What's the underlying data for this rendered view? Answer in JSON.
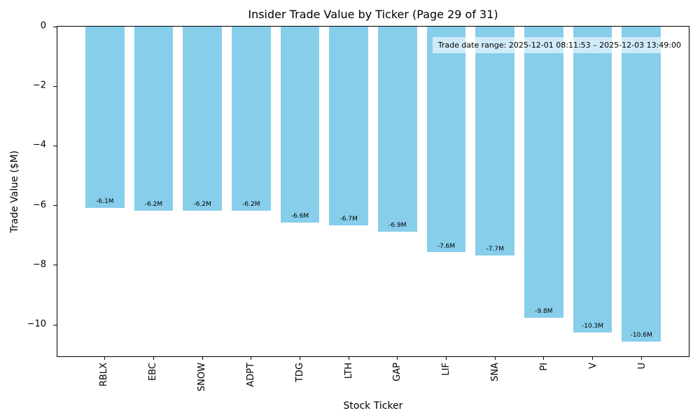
{
  "chart_data": {
    "type": "bar",
    "title": "Insider Trade Value by Ticker (Page 29 of 31)",
    "xlabel": "Stock Ticker",
    "ylabel": "Trade Value ($M)",
    "categories": [
      "RBLX",
      "EBC",
      "SNOW",
      "ADPT",
      "TDG",
      "LTH",
      "GAP",
      "LIF",
      "SNA",
      "PI",
      "V",
      "U"
    ],
    "values": [
      -6.1,
      -6.2,
      -6.2,
      -6.2,
      -6.6,
      -6.7,
      -6.9,
      -7.6,
      -7.7,
      -9.8,
      -10.3,
      -10.6
    ],
    "bar_labels": [
      "-6.1M",
      "-6.2M",
      "-6.2M",
      "-6.2M",
      "-6.6M",
      "-6.7M",
      "-6.9M",
      "-7.6M",
      "-7.7M",
      "-9.8M",
      "-10.3M",
      "-10.6M"
    ],
    "bar_color": "#87CEEB",
    "ylim": [
      -11.1,
      0
    ],
    "yticks": [
      0,
      -2,
      -4,
      -6,
      -8,
      -10
    ],
    "ytick_labels": [
      "0",
      "−2",
      "−4",
      "−6",
      "−8",
      "−10"
    ],
    "grid": false,
    "legend_position": "none",
    "annotation": "Trade date range: 2025-12-01 08:11:53 – 2025-12-03 13:49:00"
  }
}
